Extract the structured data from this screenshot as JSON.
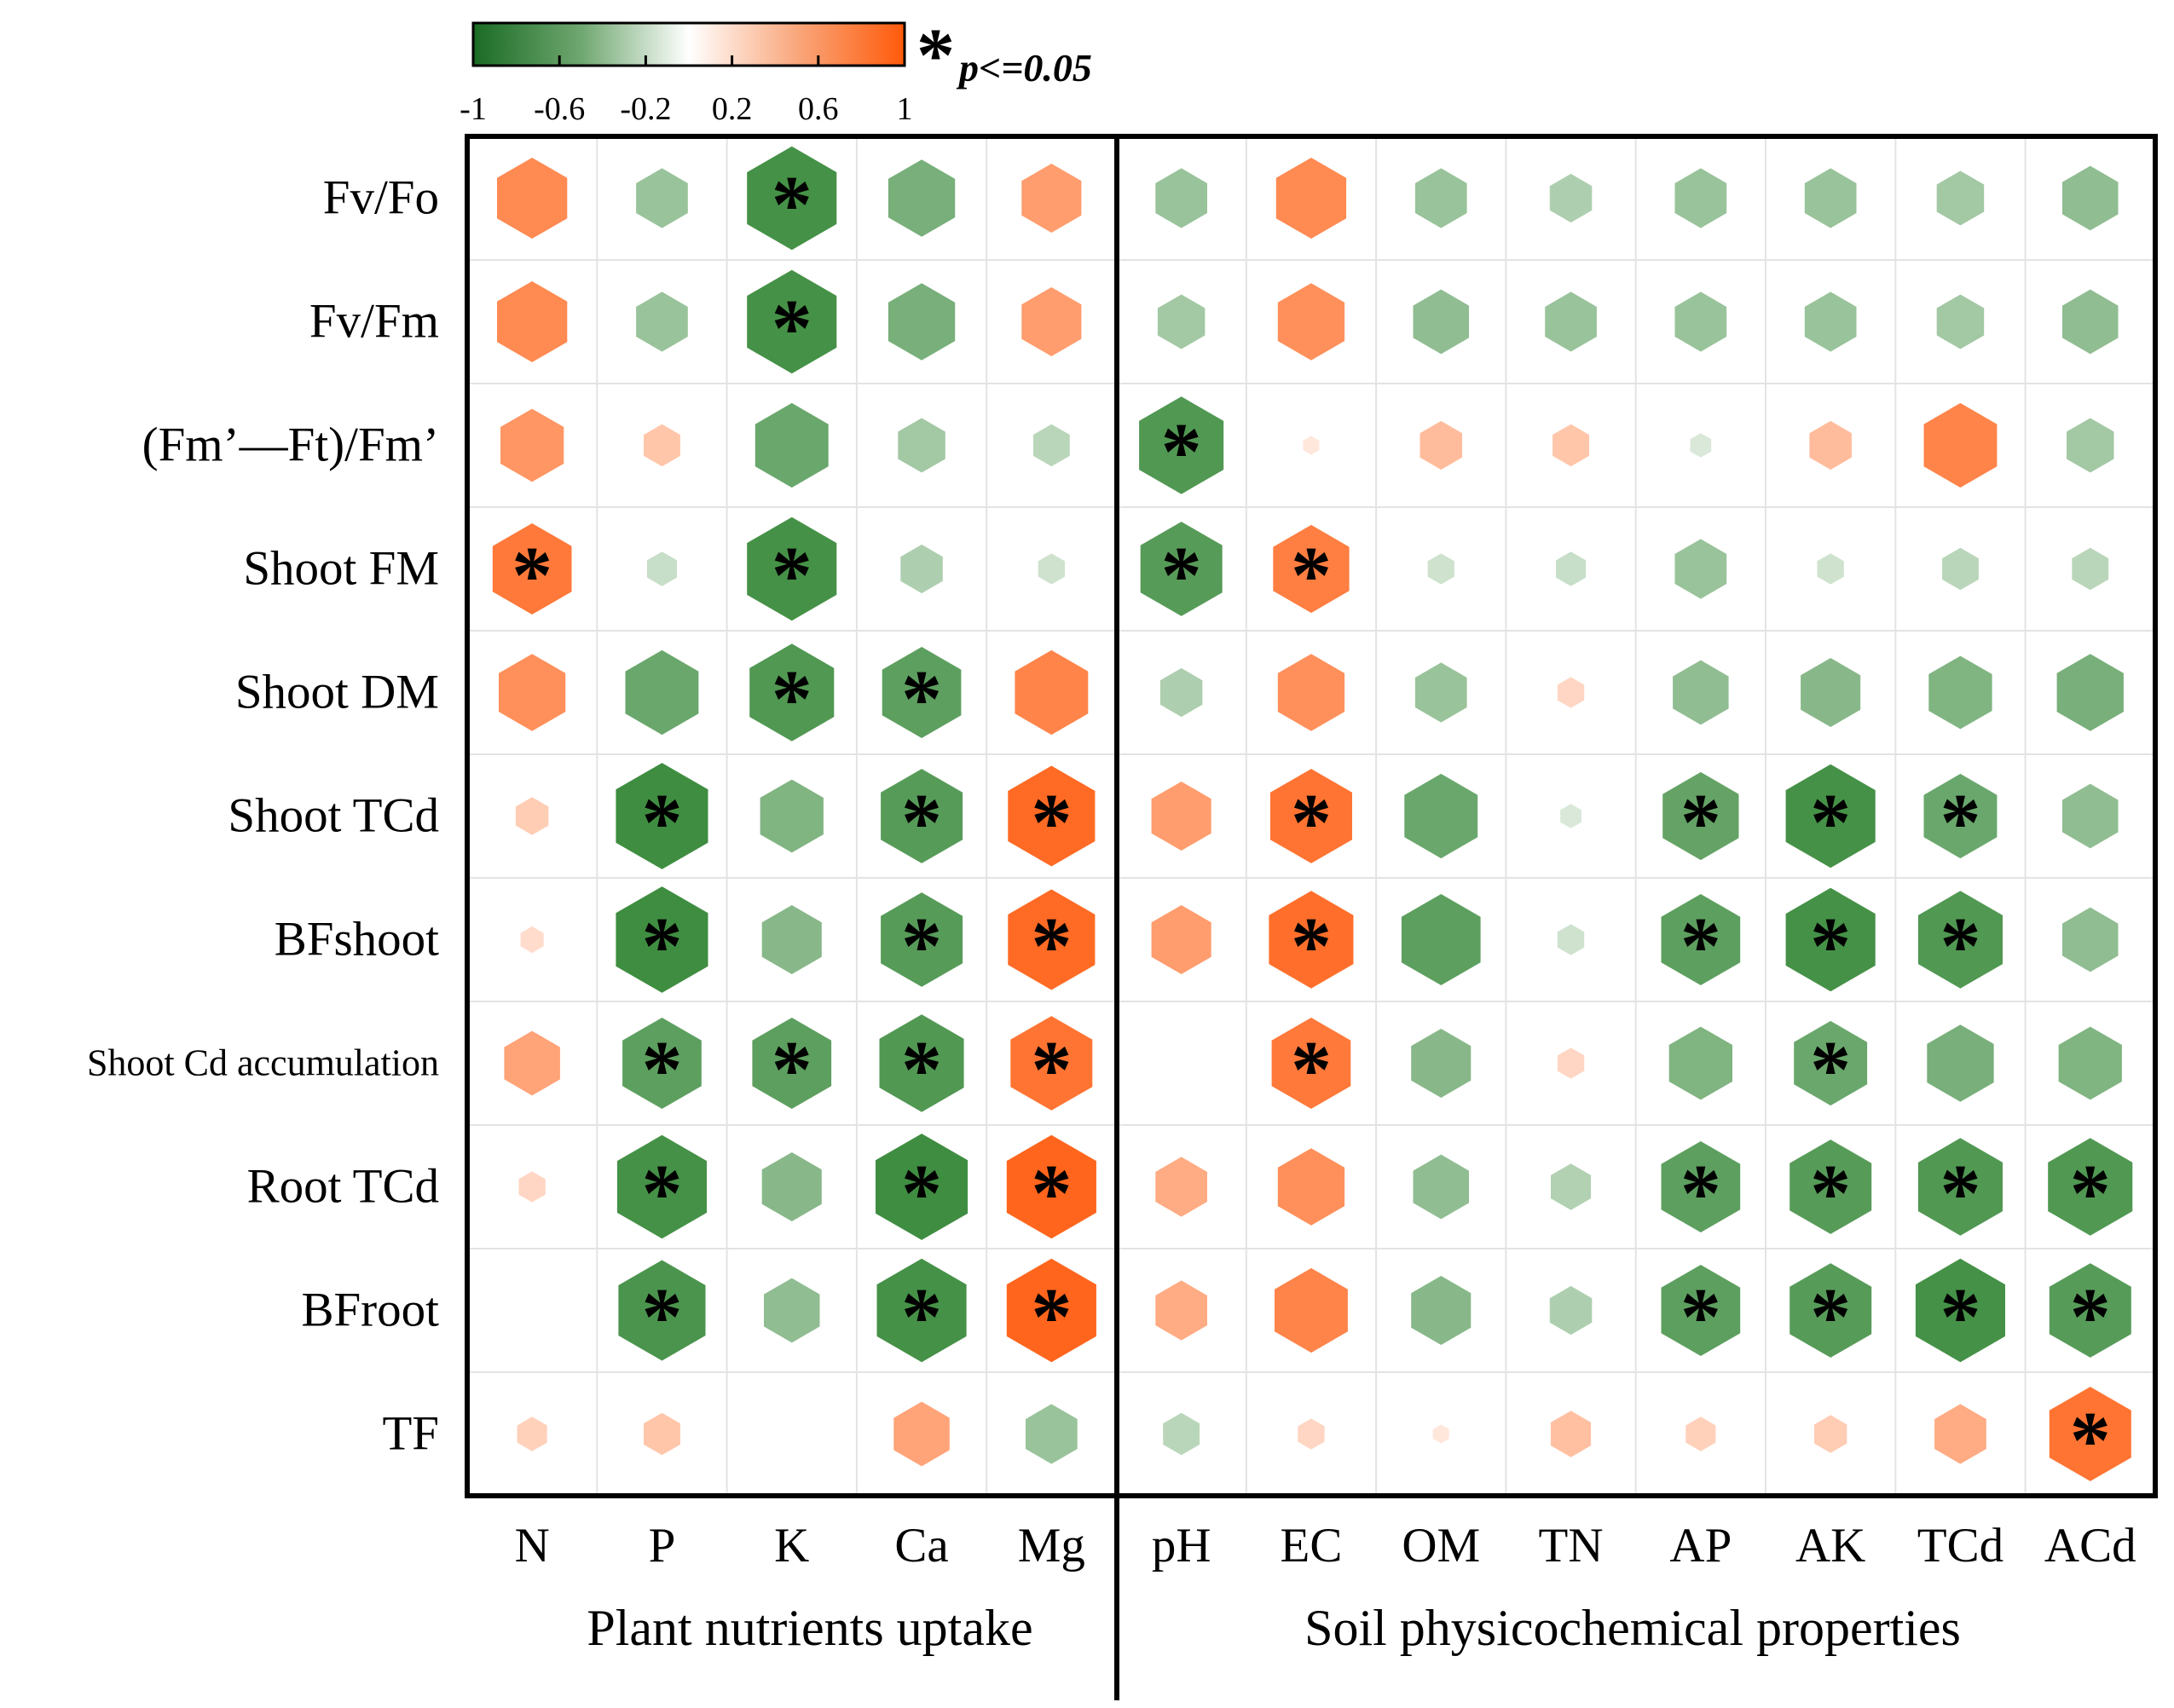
{
  "chart_data": {
    "type": "heatmap",
    "marker": "hexagon",
    "rows": [
      "Fv/Fo",
      "Fv/Fm",
      "(Fm’—Ft)/Fm’",
      "Shoot FM",
      "Shoot DM",
      "Shoot TCd",
      "BFshoot",
      "Shoot Cd accumulation",
      "Root TCd",
      "BFroot",
      "TF"
    ],
    "columns": [
      "N",
      "P",
      "K",
      "Ca",
      "Mg",
      "pH",
      "EC",
      "OM",
      "TN",
      "AP",
      "AK",
      "TCd",
      "ACd"
    ],
    "groups": [
      {
        "label": "Plant nutrients uptake",
        "columns": [
          "N",
          "P",
          "K",
          "Ca",
          "Mg"
        ]
      },
      {
        "label": "Soil physicochemical properties",
        "columns": [
          "pH",
          "EC",
          "OM",
          "TN",
          "AP",
          "AK",
          "TCd",
          "ACd"
        ]
      }
    ],
    "values": [
      [
        0.55,
        -0.3,
        -0.9,
        -0.5,
        0.4,
        -0.3,
        0.55,
        -0.3,
        -0.2,
        -0.3,
        -0.3,
        -0.25,
        -0.35
      ],
      [
        0.55,
        -0.3,
        -0.9,
        -0.5,
        0.4,
        -0.25,
        0.5,
        -0.35,
        -0.3,
        -0.3,
        -0.3,
        -0.25,
        -0.35
      ],
      [
        0.45,
        0.15,
        -0.6,
        -0.25,
        -0.15,
        -0.8,
        0.03,
        0.2,
        0.15,
        -0.05,
        0.2,
        0.6,
        -0.25
      ],
      [
        0.7,
        -0.1,
        -0.9,
        -0.2,
        -0.08,
        -0.75,
        0.65,
        -0.08,
        -0.1,
        -0.3,
        -0.08,
        -0.15,
        -0.15
      ],
      [
        0.5,
        -0.6,
        -0.8,
        -0.7,
        0.6,
        -0.2,
        0.5,
        -0.3,
        0.08,
        -0.35,
        -0.4,
        -0.45,
        -0.5
      ],
      [
        0.12,
        -0.95,
        -0.45,
        -0.75,
        0.85,
        0.4,
        0.75,
        -0.6,
        -0.05,
        -0.65,
        -0.9,
        -0.6,
        -0.35
      ],
      [
        0.06,
        -0.95,
        -0.4,
        -0.75,
        0.85,
        0.4,
        0.8,
        -0.7,
        -0.08,
        -0.7,
        -0.9,
        -0.8,
        -0.35
      ],
      [
        0.35,
        -0.7,
        -0.7,
        -0.8,
        0.75,
        0.0,
        0.7,
        -0.4,
        0.08,
        -0.45,
        -0.6,
        -0.5,
        -0.45
      ],
      [
        0.08,
        -0.9,
        -0.4,
        -0.95,
        0.9,
        0.3,
        0.5,
        -0.35,
        -0.18,
        -0.7,
        -0.75,
        -0.8,
        -0.8
      ],
      [
        0.0,
        -0.85,
        -0.35,
        -0.9,
        0.9,
        0.3,
        0.6,
        -0.4,
        -0.2,
        -0.7,
        -0.75,
        -0.9,
        -0.75
      ],
      [
        0.1,
        0.15,
        0.0,
        0.35,
        -0.3,
        -0.15,
        0.08,
        0.03,
        0.18,
        0.1,
        0.12,
        0.3,
        0.75
      ]
    ],
    "significant": [
      [
        false,
        false,
        true,
        false,
        false,
        false,
        false,
        false,
        false,
        false,
        false,
        false,
        false
      ],
      [
        false,
        false,
        true,
        false,
        false,
        false,
        false,
        false,
        false,
        false,
        false,
        false,
        false
      ],
      [
        false,
        false,
        false,
        false,
        false,
        true,
        false,
        false,
        false,
        false,
        false,
        false,
        false
      ],
      [
        true,
        false,
        true,
        false,
        false,
        true,
        true,
        false,
        false,
        false,
        false,
        false,
        false
      ],
      [
        false,
        false,
        true,
        true,
        false,
        false,
        false,
        false,
        false,
        false,
        false,
        false,
        false
      ],
      [
        false,
        true,
        false,
        true,
        true,
        false,
        true,
        false,
        false,
        true,
        true,
        true,
        false
      ],
      [
        false,
        true,
        false,
        true,
        true,
        false,
        true,
        false,
        false,
        true,
        true,
        true,
        false
      ],
      [
        false,
        true,
        true,
        true,
        true,
        false,
        true,
        false,
        false,
        false,
        true,
        false,
        false
      ],
      [
        false,
        true,
        false,
        true,
        true,
        false,
        false,
        false,
        false,
        true,
        true,
        true,
        true
      ],
      [
        false,
        true,
        false,
        true,
        true,
        false,
        false,
        false,
        false,
        true,
        true,
        true,
        true
      ],
      [
        false,
        false,
        false,
        false,
        false,
        false,
        false,
        false,
        false,
        false,
        false,
        false,
        true
      ]
    ],
    "colorbar": {
      "range": [
        -1,
        1
      ],
      "ticks": [
        "-1",
        "-0.6",
        "-0.2",
        "0.2",
        "0.6",
        "1"
      ],
      "tick_values": [
        -1,
        -0.6,
        -0.2,
        0.2,
        0.6,
        1
      ],
      "colors": {
        "negative": "#3a8a3c",
        "neutral": "#ffffff",
        "positive": "#ff5c0f"
      }
    },
    "significance_legend": {
      "symbol": "*",
      "label": "p<=0.05"
    }
  }
}
